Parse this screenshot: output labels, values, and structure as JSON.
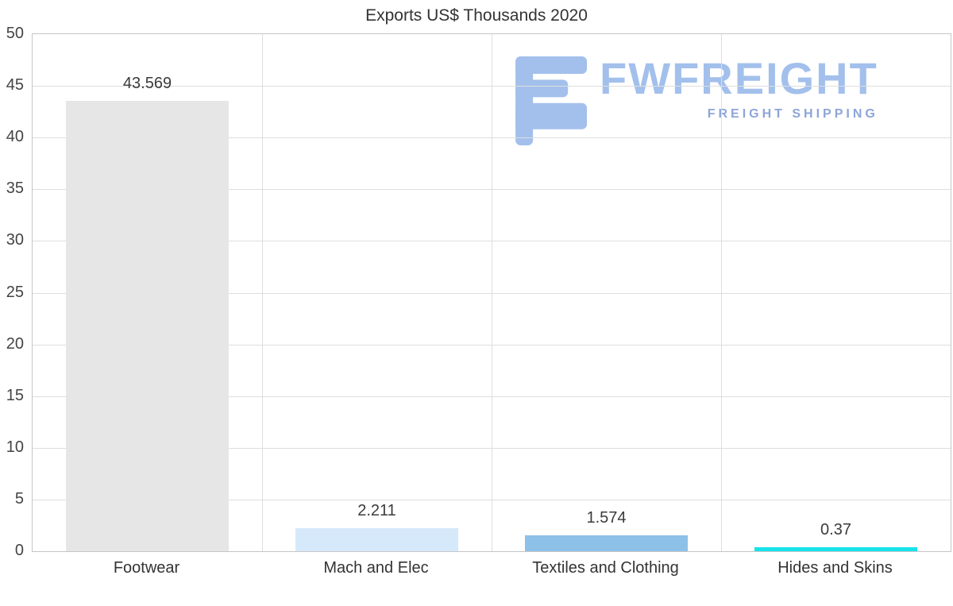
{
  "chart_data": {
    "type": "bar",
    "title": "Exports US$ Thousands 2020",
    "categories": [
      "Footwear",
      "Mach and Elec",
      "Textiles and Clothing",
      "Hides and Skins"
    ],
    "values": [
      43.569,
      2.211,
      1.574,
      0.37
    ],
    "value_labels": [
      "43.569",
      "2.211",
      "1.574",
      "0.37"
    ],
    "bar_colors": [
      "#e6e6e6",
      "#d6e9fb",
      "#8dc1e7",
      "#18e3ea"
    ],
    "xlabel": "",
    "ylabel": "",
    "ylim": [
      0,
      50
    ],
    "yticks": [
      0,
      5,
      10,
      15,
      20,
      25,
      30,
      35,
      40,
      45,
      50
    ],
    "grid": "on",
    "legend": "none"
  },
  "watermark": {
    "brand": "FWFREIGHT",
    "tagline": "FREIGHT SHIPPING",
    "logo_color": "#a3c0ec",
    "tagline_color": "#8da5d9"
  }
}
